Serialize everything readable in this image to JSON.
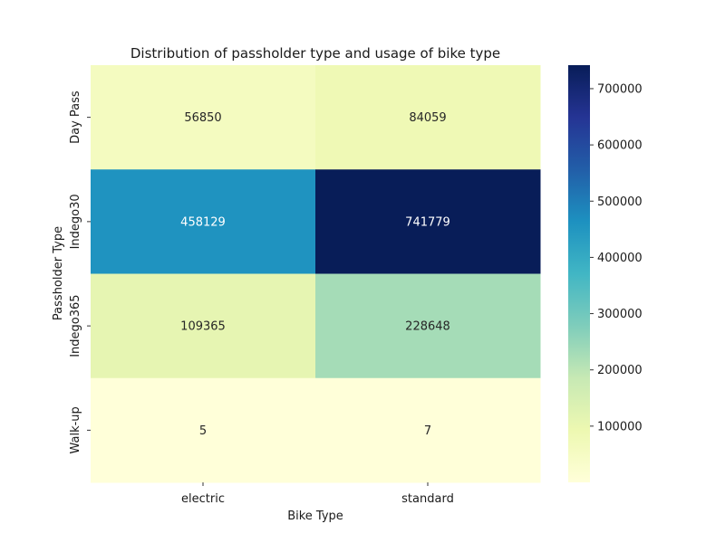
{
  "chart_data": {
    "type": "heatmap",
    "title": "Distribution of passholder type and usage of bike type",
    "xlabel": "Bike Type",
    "ylabel": "Passholder Type",
    "x_categories": [
      "electric",
      "standard"
    ],
    "y_categories": [
      "Day Pass",
      "Indego30",
      "Indego365",
      "Walk-up"
    ],
    "values": [
      [
        56850,
        84059
      ],
      [
        458129,
        741779
      ],
      [
        109365,
        228648
      ],
      [
        5,
        7
      ]
    ],
    "colorbar": {
      "min": 5,
      "max": 741779,
      "ticks": [
        100000,
        200000,
        300000,
        400000,
        500000,
        600000,
        700000
      ],
      "colormap": "YlGnBu"
    }
  }
}
